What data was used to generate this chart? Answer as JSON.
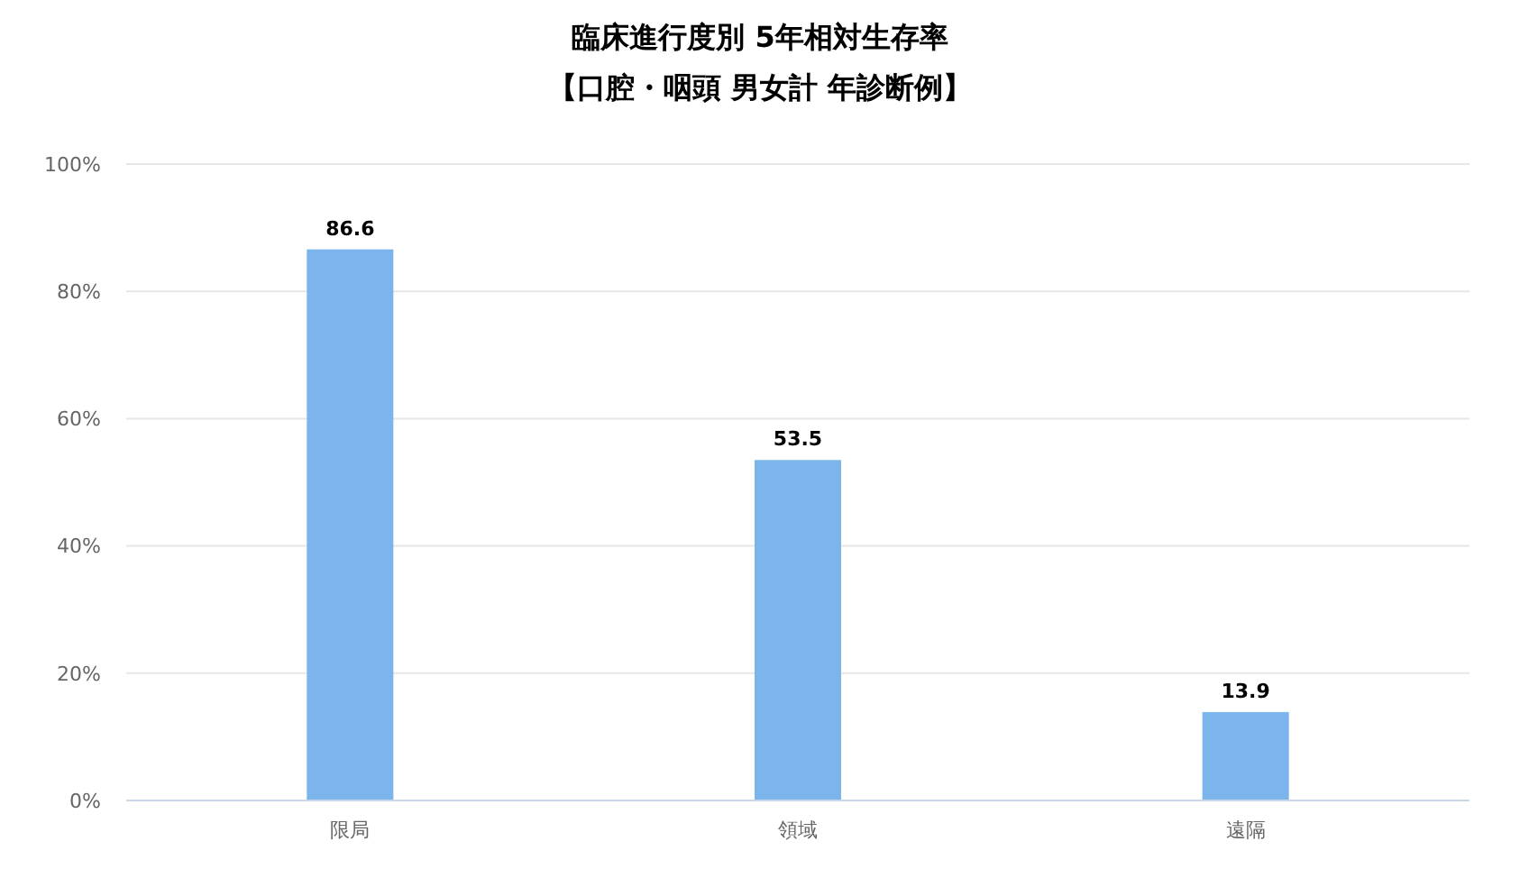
{
  "chart_data": {
    "type": "bar",
    "title": "臨床進行度別 5年相対生存率",
    "subtitle": "【口腔・咽頭 男女計 年診断例】",
    "categories": [
      "限局",
      "領域",
      "遠隔"
    ],
    "values": [
      86.6,
      53.5,
      13.9
    ],
    "color": "#7cb5ec",
    "ylim": [
      0,
      100
    ],
    "yticks": [
      {
        "value": 0,
        "label": "0%"
      },
      {
        "value": 20,
        "label": "20%"
      },
      {
        "value": 40,
        "label": "40%"
      },
      {
        "value": 60,
        "label": "60%"
      },
      {
        "value": 80,
        "label": "80%"
      },
      {
        "value": 100,
        "label": "100%"
      }
    ],
    "grid": "y",
    "data_labels": true
  }
}
